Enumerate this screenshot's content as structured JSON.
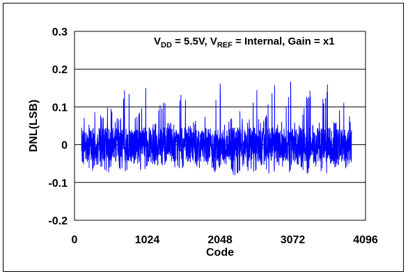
{
  "chart_data": {
    "type": "line",
    "title": "",
    "xlabel": "Code",
    "ylabel": "DNL(LSB)",
    "xlim": [
      0,
      4096
    ],
    "ylim": [
      -0.2,
      0.3
    ],
    "x_ticks": [
      0,
      1024,
      2048,
      3072,
      4096
    ],
    "x_tick_labels": [
      "0",
      "1024",
      "2048",
      "3072",
      "4096"
    ],
    "y_ticks": [
      -0.2,
      -0.1,
      0,
      0.1,
      0.2,
      0.3
    ],
    "y_tick_labels": [
      "-0.2",
      "-0.1",
      "0",
      "0.1",
      "0.2",
      "0.3"
    ],
    "grid": "horizontal",
    "annotation": {
      "vdd_main": "V",
      "vdd_sub": "DD",
      "vdd_value": " = 5.5V,  ",
      "vref_main": "V",
      "vref_sub": "REF",
      "vref_value": " = Internal,  ",
      "gain": "Gain = x1"
    },
    "series": [
      {
        "color": "#0000ff",
        "x_range": [
          100,
          3900
        ],
        "x": [
          100,
          150,
          200,
          256,
          300,
          350,
          400,
          450,
          512,
          550,
          600,
          650,
          700,
          768,
          800,
          850,
          900,
          950,
          1024,
          1050,
          1100,
          1150,
          1200,
          1280,
          1300,
          1350,
          1400,
          1450,
          1536,
          1600,
          1650,
          1700,
          1750,
          1792,
          1850,
          1900,
          1950,
          2000,
          2048,
          2100,
          2150,
          2200,
          2250,
          2304,
          2350,
          2400,
          2450,
          2500,
          2560,
          2600,
          2650,
          2700,
          2750,
          2816,
          2850,
          2900,
          2950,
          3000,
          3072,
          3100,
          3150,
          3200,
          3250,
          3328,
          3350,
          3400,
          3450,
          3500,
          3584,
          3600,
          3650,
          3700,
          3750,
          3840,
          3900
        ],
        "max": [
          0.135,
          0.06,
          0.05,
          0.175,
          0.06,
          0.09,
          0.08,
          0.12,
          0.12,
          0.06,
          0.08,
          0.07,
          0.15,
          0.15,
          0.07,
          0.07,
          0.08,
          0.11,
          0.19,
          0.06,
          0.06,
          0.06,
          0.11,
          0.12,
          0.06,
          0.06,
          0.06,
          0.12,
          0.17,
          0.06,
          0.06,
          0.06,
          0.11,
          0.18,
          0.05,
          0.06,
          0.1,
          0.13,
          0.17,
          0.06,
          0.06,
          0.07,
          0.09,
          0.15,
          0.07,
          0.07,
          0.06,
          0.12,
          0.17,
          0.06,
          0.06,
          0.08,
          0.14,
          0.17,
          0.06,
          0.06,
          0.1,
          0.12,
          0.205,
          0.06,
          0.06,
          0.07,
          0.12,
          0.16,
          0.06,
          0.06,
          0.07,
          0.13,
          0.18,
          0.06,
          0.06,
          0.07,
          0.13,
          0.1,
          0.06
        ],
        "min": [
          -0.04,
          -0.065,
          -0.06,
          -0.07,
          -0.05,
          -0.06,
          -0.07,
          -0.08,
          -0.07,
          -0.05,
          -0.06,
          -0.07,
          -0.08,
          -0.07,
          -0.05,
          -0.06,
          -0.06,
          -0.07,
          -0.06,
          -0.05,
          -0.05,
          -0.06,
          -0.06,
          -0.06,
          -0.05,
          -0.05,
          -0.06,
          -0.06,
          -0.07,
          -0.05,
          -0.06,
          -0.06,
          -0.07,
          -0.08,
          -0.06,
          -0.06,
          -0.07,
          -0.08,
          -0.06,
          -0.05,
          -0.06,
          -0.07,
          -0.09,
          -0.08,
          -0.06,
          -0.06,
          -0.07,
          -0.08,
          -0.07,
          -0.05,
          -0.06,
          -0.07,
          -0.08,
          -0.07,
          -0.05,
          -0.06,
          -0.07,
          -0.08,
          -0.06,
          -0.05,
          -0.06,
          -0.07,
          -0.08,
          -0.07,
          -0.05,
          -0.06,
          -0.07,
          -0.08,
          -0.1,
          -0.05,
          -0.06,
          -0.06,
          -0.07,
          -0.06,
          -0.05
        ]
      }
    ]
  }
}
